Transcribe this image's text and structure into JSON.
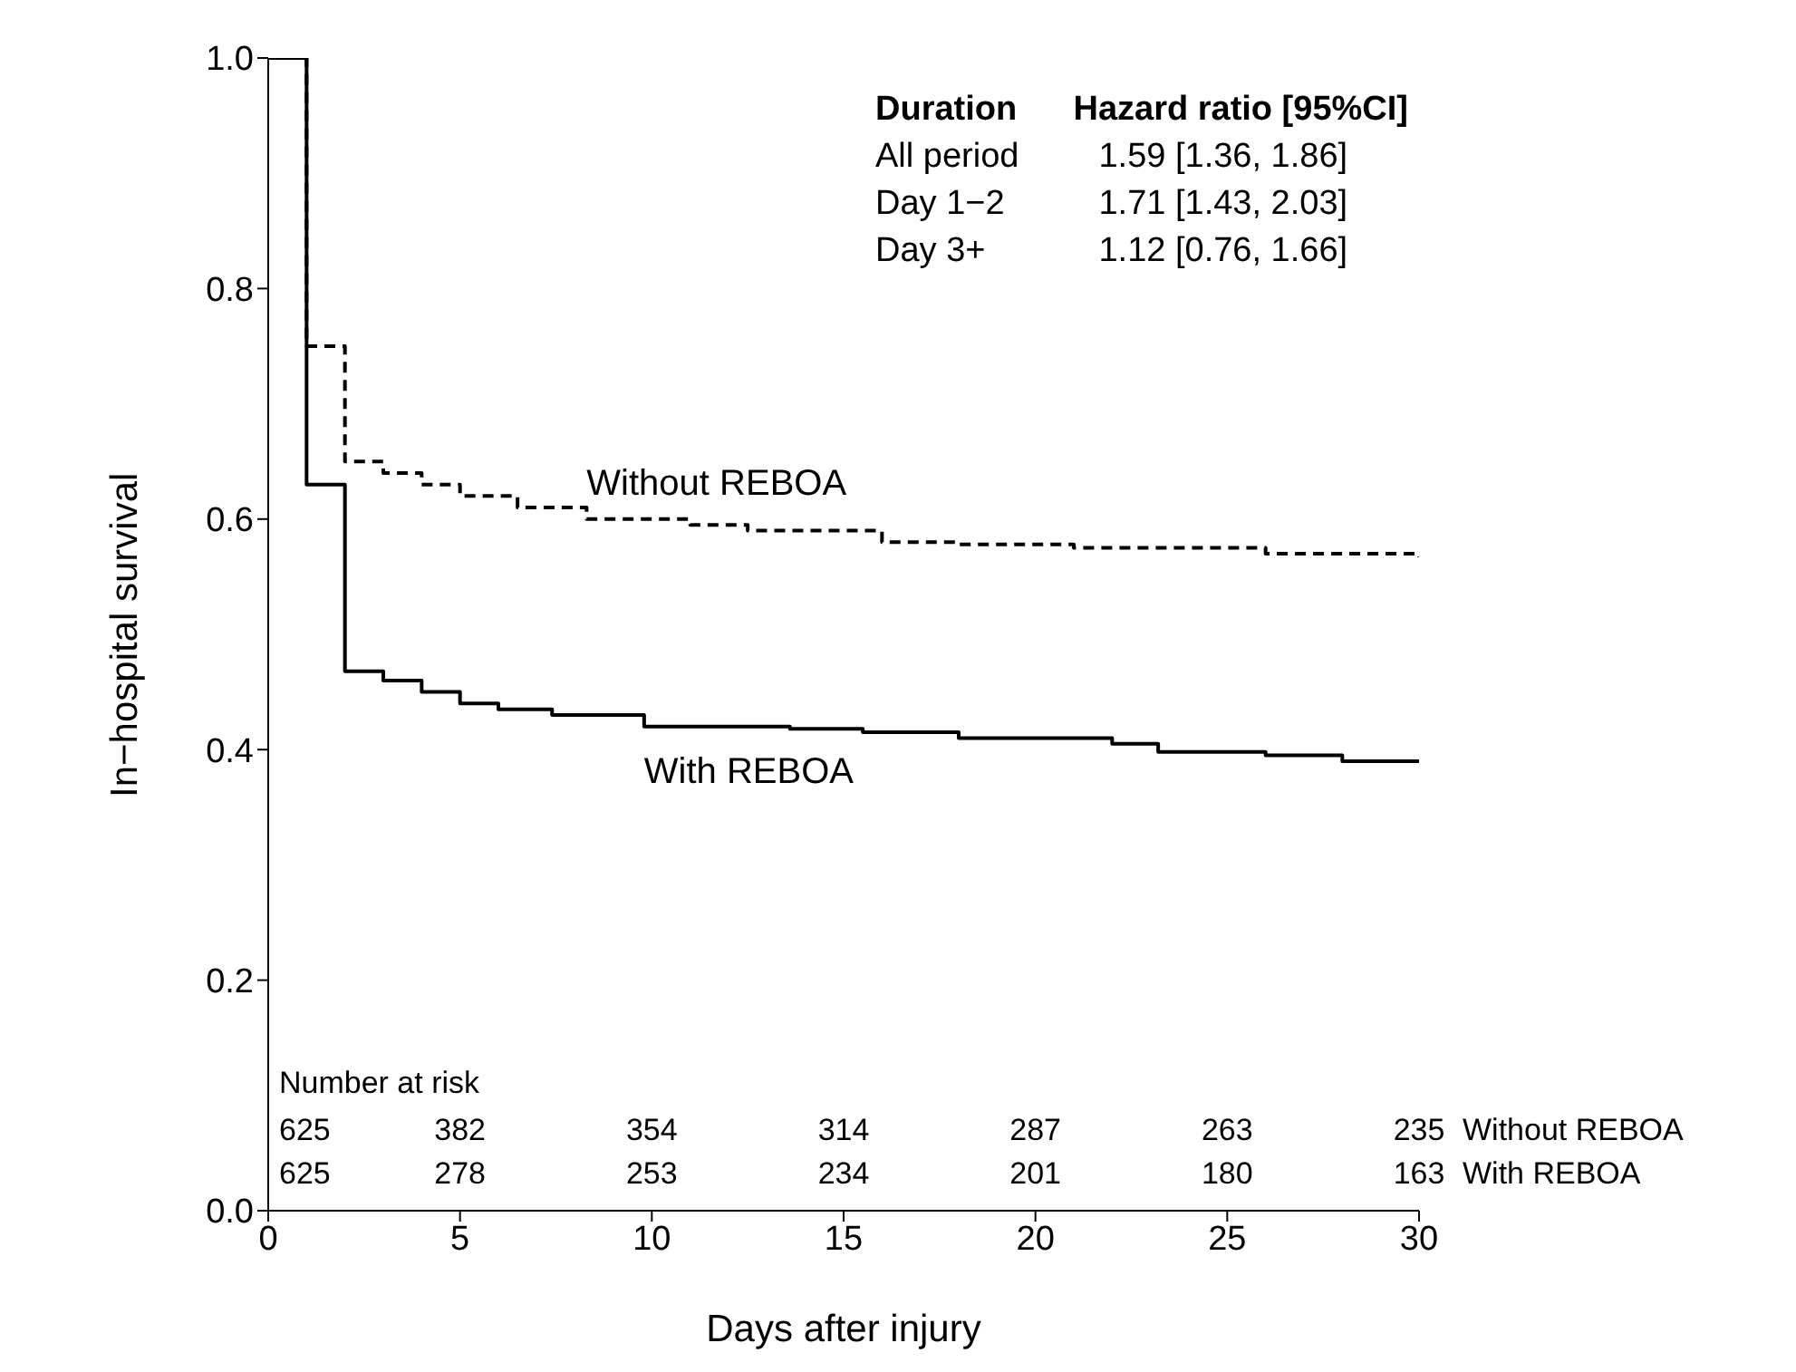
{
  "chart_data": {
    "type": "step",
    "xlabel": "Days after injury",
    "ylabel": "In−hospital survival",
    "xlim": [
      0,
      30
    ],
    "xticks": [
      0,
      5,
      10,
      15,
      20,
      25,
      30
    ],
    "ylim": [
      0,
      1
    ],
    "yticks": [
      {
        "value": 0,
        "label": "0.0"
      },
      {
        "value": 0.2,
        "label": "0.2"
      },
      {
        "value": 0.4,
        "label": "0.4"
      },
      {
        "value": 0.6,
        "label": "0.6"
      },
      {
        "value": 0.8,
        "label": "0.8"
      },
      {
        "value": 1,
        "label": "1.0"
      }
    ],
    "grid": false,
    "legend": false,
    "series": [
      {
        "name": "Without REBOA",
        "color": "#000000",
        "line_style": "dashed",
        "x": [
          0,
          1,
          2,
          3,
          4,
          5,
          6.5,
          8.3,
          11,
          12.5,
          16,
          18,
          21,
          26,
          30
        ],
        "values": [
          1,
          0.75,
          0.65,
          0.64,
          0.63,
          0.62,
          0.61,
          0.6,
          0.595,
          0.59,
          0.58,
          0.578,
          0.575,
          0.57,
          0.567
        ]
      },
      {
        "name": "With REBOA",
        "color": "#000000",
        "line_style": "solid",
        "x": [
          0,
          1,
          2,
          3,
          4,
          5,
          6,
          7.4,
          9.8,
          13.6,
          15.5,
          18,
          22,
          23.2,
          26,
          28,
          30
        ],
        "values": [
          1,
          0.63,
          0.468,
          0.46,
          0.45,
          0.44,
          0.435,
          0.43,
          0.42,
          0.418,
          0.415,
          0.41,
          0.405,
          0.398,
          0.395,
          0.39,
          0.39
        ]
      }
    ],
    "annotations": [
      "Duration",
      "Hazard ratio [95%CI]",
      "All period",
      "1.59 [1.36, 1.86]",
      "Day 1−2",
      "1.71 [1.43, 2.03]",
      "Day 3+",
      "1.12 [0.76, 1.66]",
      "Number at risk",
      "625",
      "382",
      "354",
      "314",
      "287",
      "263",
      "235",
      "Without REBOA",
      "625",
      "278",
      "253",
      "234",
      "201",
      "180",
      "163",
      "With REBOA"
    ]
  }
}
